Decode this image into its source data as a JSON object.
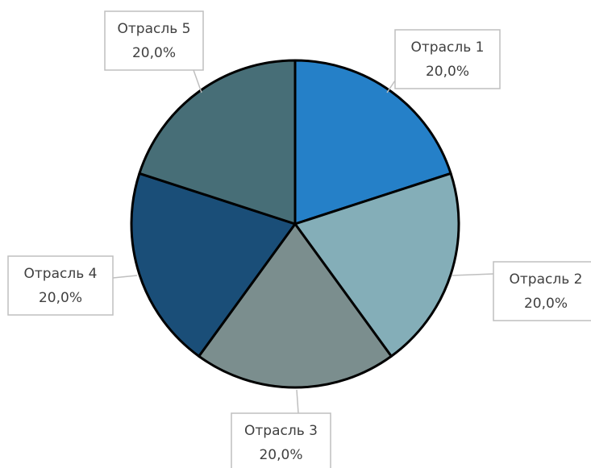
{
  "chart_data": {
    "type": "pie",
    "categories": [
      "Отрасль 1",
      "Отрасль 2",
      "Отрасль 3",
      "Отрасль 4",
      "Отрасль 5"
    ],
    "values": [
      20,
      20,
      20,
      20,
      20
    ],
    "value_labels": [
      "20,0%",
      "20,0%",
      "20,0%",
      "20,0%",
      "20,0%"
    ],
    "colors": [
      "#2580c8",
      "#84aeb8",
      "#7b8e8e",
      "#1a4e78",
      "#476e77"
    ]
  }
}
